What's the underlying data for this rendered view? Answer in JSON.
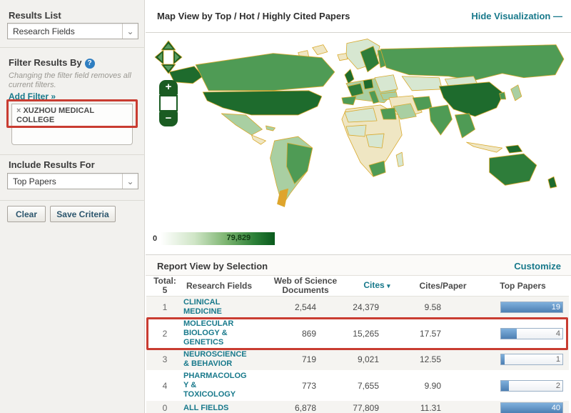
{
  "colors": {
    "link_teal": "#18798b",
    "annotation_red": "#c93c31",
    "bar_blue": "#7fb0dc",
    "bar_blue_dark": "#4d7fb3",
    "control_green": "#1a5c22"
  },
  "sidebar": {
    "results_list_label": "Results List",
    "results_list_selected": "Research Fields",
    "filter_heading": "Filter Results By",
    "filter_help": "?",
    "filter_note": "Changing the filter field removes all current filters.",
    "add_filter_label": "Add Filter »",
    "active_filter_remove": "×",
    "active_filter": "XUZHOU MEDICAL COLLEGE",
    "include_label": "Include Results For",
    "include_selected": "Top Papers",
    "clear_button": "Clear",
    "save_button": "Save Criteria"
  },
  "map_panel": {
    "title": "Map View by Top / Hot / Highly Cited Papers",
    "hide_link": "Hide Visualization",
    "hide_icon": "—",
    "zoom_in": "+",
    "zoom_out": "−",
    "legend_min": "0",
    "legend_max": "79,829",
    "palette": {
      "dark": "#1e6b2d",
      "medium": "#4f9b55",
      "medium_dark": "#2e7d3a",
      "light": "#a9cfa2",
      "pale": "#d7e7d1",
      "tan": "#efe6c3",
      "orange": "#dfa42c",
      "outline": "#d9a92c",
      "legend_min_color": "#ffffff",
      "legend_max_color": "#0a5a1d"
    }
  },
  "report": {
    "title": "Report View by Selection",
    "customize_link": "Customize",
    "total_label": "Total:",
    "total_value": "5",
    "columns": [
      "Research Fields",
      "Web of Science Documents",
      "Cites",
      "Cites/Paper",
      "Top Papers"
    ],
    "sort_indicator": "▾",
    "rows": [
      {
        "rank": "1",
        "field_lines": [
          "CLINICAL",
          "MEDICINE"
        ],
        "web_of_science_documents": "2,544",
        "cites": "24,379",
        "cites_per_paper": "9.58",
        "top_papers": "19",
        "bar_fill_pct": 100,
        "highlighted": false
      },
      {
        "rank": "2",
        "field_lines": [
          "MOLECULAR",
          "BIOLOGY &",
          "GENETICS"
        ],
        "web_of_science_documents": "869",
        "cites": "15,265",
        "cites_per_paper": "17.57",
        "top_papers": "4",
        "bar_fill_pct": 26,
        "highlighted": true
      },
      {
        "rank": "3",
        "field_lines": [
          "NEUROSCIENCE",
          "& BEHAVIOR"
        ],
        "web_of_science_documents": "719",
        "cites": "9,021",
        "cites_per_paper": "12.55",
        "top_papers": "1",
        "bar_fill_pct": 6,
        "highlighted": false
      },
      {
        "rank": "4",
        "field_lines": [
          "PHARMACOLOG",
          "Y &",
          "TOXICOLOGY"
        ],
        "web_of_science_documents": "773",
        "cites": "7,655",
        "cites_per_paper": "9.90",
        "top_papers": "2",
        "bar_fill_pct": 13,
        "highlighted": false
      },
      {
        "rank": "0",
        "field_lines": [
          "ALL FIELDS"
        ],
        "web_of_science_documents": "6,878",
        "cites": "77,809",
        "cites_per_paper": "11.31",
        "top_papers": "40",
        "bar_fill_pct": 100,
        "highlighted": false
      }
    ]
  }
}
